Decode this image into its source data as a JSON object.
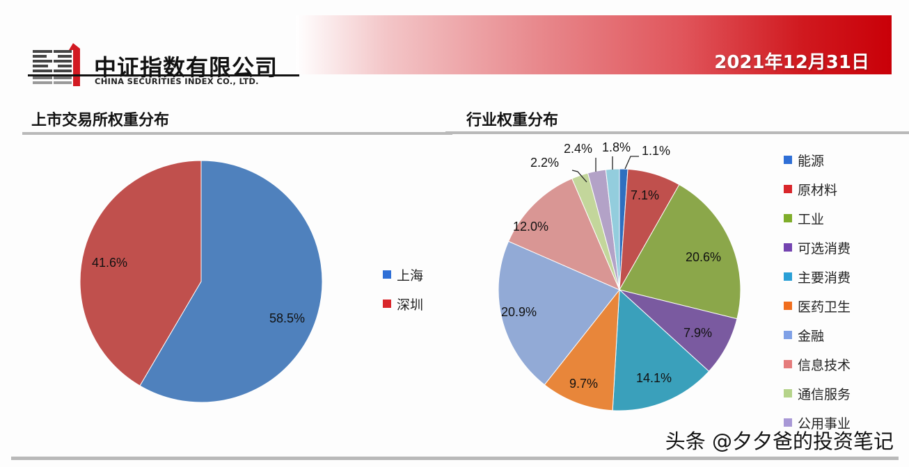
{
  "header": {
    "company_cn": "中证指数有限公司",
    "company_en": "CHINA SECURITIES INDEX CO., LTD.",
    "date": "2021年12月31日",
    "banner_color": "#c90008"
  },
  "left_section": {
    "title": "上市交易所权重分布"
  },
  "right_section": {
    "title": "行业权重分布"
  },
  "watermark": "头条 @夕夕爸的投资笔记",
  "chart_data": [
    {
      "type": "pie",
      "title": "上市交易所权重分布",
      "categories": [
        "上海",
        "深圳"
      ],
      "values": [
        58.5,
        41.6
      ],
      "labels": [
        "58.5%",
        "41.6%"
      ],
      "colors": [
        "#4f81bd",
        "#c0504d"
      ],
      "legend_colors": [
        "#2f6fd6",
        "#d9262b"
      ],
      "start_angle": 0,
      "direction": "clockwise",
      "legend_position": "right"
    },
    {
      "type": "pie",
      "title": "行业权重分布",
      "categories": [
        "能源",
        "原材料",
        "工业",
        "可选消费",
        "主要消费",
        "医药卫生",
        "金融",
        "信息技术",
        "通信服务",
        "公用事业",
        ""
      ],
      "values": [
        1.1,
        7.1,
        20.6,
        7.9,
        14.1,
        9.7,
        20.9,
        12.0,
        2.2,
        2.4,
        1.8
      ],
      "labels": [
        "1.1%",
        "7.1%",
        "20.6%",
        "7.9%",
        "14.1%",
        "9.7%",
        "20.9%",
        "12.0%",
        "2.2%",
        "2.4%",
        "1.8%"
      ],
      "colors": [
        "#2e6fbf",
        "#c0504d",
        "#8ba74a",
        "#7a5aa0",
        "#3aa0bb",
        "#e8863a",
        "#92aad6",
        "#d99694",
        "#c3d69b",
        "#b3a2c7",
        "#93cddd"
      ],
      "legend_colors": [
        "#2f6fd6",
        "#d9262b",
        "#7fad2a",
        "#7444b0",
        "#2a9fd6",
        "#f06e1e",
        "#7fa0e6",
        "#e57c7c",
        "#b5d38a",
        "#a898d6"
      ],
      "start_angle": 0,
      "direction": "clockwise",
      "legend_position": "right"
    }
  ]
}
